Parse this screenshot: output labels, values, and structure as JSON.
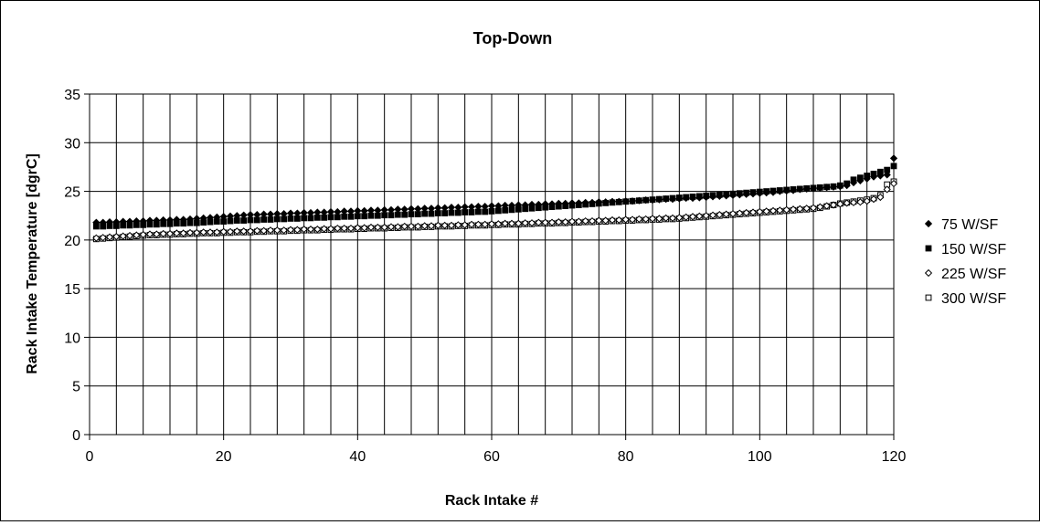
{
  "chart_data": {
    "type": "scatter",
    "title": "Top-Down",
    "xlabel": "Rack Intake #",
    "ylabel": "Rack Intake Temperature [dgrC]",
    "xlim": [
      0,
      120
    ],
    "ylim": [
      0,
      35
    ],
    "xticks": [
      0,
      20,
      40,
      60,
      80,
      100,
      120
    ],
    "yticks": [
      0,
      5,
      10,
      15,
      20,
      25,
      30,
      35
    ],
    "grid": true,
    "legend_position": "right",
    "x": [
      1,
      2,
      3,
      4,
      5,
      6,
      7,
      8,
      9,
      10,
      11,
      12,
      13,
      14,
      15,
      16,
      17,
      18,
      19,
      20,
      21,
      22,
      23,
      24,
      25,
      26,
      27,
      28,
      29,
      30,
      31,
      32,
      33,
      34,
      35,
      36,
      37,
      38,
      39,
      40,
      41,
      42,
      43,
      44,
      45,
      46,
      47,
      48,
      49,
      50,
      51,
      52,
      53,
      54,
      55,
      56,
      57,
      58,
      59,
      60,
      61,
      62,
      63,
      64,
      65,
      66,
      67,
      68,
      69,
      70,
      71,
      72,
      73,
      74,
      75,
      76,
      77,
      78,
      79,
      80,
      81,
      82,
      83,
      84,
      85,
      86,
      87,
      88,
      89,
      90,
      91,
      92,
      93,
      94,
      95,
      96,
      97,
      98,
      99,
      100,
      101,
      102,
      103,
      104,
      105,
      106,
      107,
      108,
      109,
      110,
      111,
      112,
      113,
      114,
      115,
      116,
      117,
      118,
      119,
      120
    ],
    "series": [
      {
        "name": "75 W/SF",
        "marker": "diamond-filled",
        "values": [
          21.8,
          21.8,
          21.85,
          21.85,
          21.9,
          21.9,
          21.95,
          21.95,
          22.0,
          22.0,
          22.05,
          22.05,
          22.1,
          22.1,
          22.15,
          22.2,
          22.25,
          22.3,
          22.35,
          22.4,
          22.45,
          22.5,
          22.55,
          22.6,
          22.6,
          22.65,
          22.65,
          22.7,
          22.7,
          22.75,
          22.75,
          22.8,
          22.8,
          22.85,
          22.85,
          22.9,
          22.9,
          22.95,
          22.95,
          23.0,
          23.0,
          23.05,
          23.05,
          23.1,
          23.1,
          23.15,
          23.15,
          23.2,
          23.2,
          23.25,
          23.25,
          23.3,
          23.3,
          23.35,
          23.35,
          23.4,
          23.4,
          23.45,
          23.45,
          23.5,
          23.5,
          23.55,
          23.55,
          23.6,
          23.6,
          23.65,
          23.65,
          23.7,
          23.7,
          23.75,
          23.75,
          23.8,
          23.8,
          23.85,
          23.85,
          23.9,
          23.9,
          23.95,
          23.95,
          24.0,
          24.0,
          24.05,
          24.1,
          24.1,
          24.15,
          24.2,
          24.2,
          24.25,
          24.3,
          24.3,
          24.35,
          24.4,
          24.45,
          24.5,
          24.55,
          24.6,
          24.65,
          24.7,
          24.75,
          24.8,
          24.85,
          24.9,
          25.0,
          25.05,
          25.1,
          25.2,
          25.25,
          25.3,
          25.35,
          25.4,
          25.45,
          25.5,
          25.6,
          25.9,
          26.1,
          26.3,
          26.5,
          26.6,
          26.7,
          28.4
        ]
      },
      {
        "name": "150 W/SF",
        "marker": "square-filled",
        "values": [
          21.4,
          21.4,
          21.45,
          21.45,
          21.5,
          21.5,
          21.55,
          21.55,
          21.6,
          21.6,
          21.65,
          21.65,
          21.7,
          21.7,
          21.75,
          21.75,
          21.8,
          21.85,
          21.9,
          21.9,
          21.95,
          22.0,
          22.0,
          22.05,
          22.05,
          22.1,
          22.1,
          22.15,
          22.15,
          22.2,
          22.2,
          22.25,
          22.25,
          22.3,
          22.3,
          22.35,
          22.35,
          22.4,
          22.4,
          22.45,
          22.45,
          22.5,
          22.5,
          22.55,
          22.55,
          22.6,
          22.6,
          22.65,
          22.65,
          22.7,
          22.7,
          22.75,
          22.75,
          22.8,
          22.8,
          22.85,
          22.85,
          22.9,
          22.9,
          22.95,
          23.0,
          23.05,
          23.1,
          23.15,
          23.2,
          23.25,
          23.3,
          23.35,
          23.4,
          23.45,
          23.5,
          23.55,
          23.6,
          23.65,
          23.7,
          23.75,
          23.8,
          23.85,
          23.9,
          23.95,
          24.0,
          24.05,
          24.1,
          24.15,
          24.2,
          24.25,
          24.3,
          24.35,
          24.4,
          24.45,
          24.5,
          24.55,
          24.6,
          24.65,
          24.7,
          24.75,
          24.8,
          24.85,
          24.9,
          24.95,
          25.0,
          25.05,
          25.1,
          25.15,
          25.2,
          25.25,
          25.3,
          25.35,
          25.4,
          25.45,
          25.5,
          25.6,
          25.8,
          26.2,
          26.4,
          26.6,
          26.8,
          27.0,
          27.2,
          27.6
        ]
      },
      {
        "name": "225 W/SF",
        "marker": "diamond-open",
        "values": [
          20.2,
          20.25,
          20.3,
          20.35,
          20.4,
          20.45,
          20.5,
          20.55,
          20.6,
          20.6,
          20.65,
          20.65,
          20.7,
          20.7,
          20.75,
          20.75,
          20.8,
          20.8,
          20.8,
          20.85,
          20.85,
          20.9,
          20.9,
          20.9,
          20.95,
          20.95,
          21.0,
          21.0,
          21.0,
          21.05,
          21.05,
          21.1,
          21.1,
          21.1,
          21.15,
          21.15,
          21.2,
          21.2,
          21.2,
          21.25,
          21.25,
          21.3,
          21.3,
          21.3,
          21.35,
          21.35,
          21.4,
          21.4,
          21.4,
          21.45,
          21.45,
          21.5,
          21.5,
          21.5,
          21.55,
          21.55,
          21.6,
          21.6,
          21.6,
          21.65,
          21.65,
          21.7,
          21.7,
          21.7,
          21.75,
          21.75,
          21.8,
          21.8,
          21.8,
          21.85,
          21.85,
          21.9,
          21.9,
          21.95,
          21.95,
          22.0,
          22.0,
          22.05,
          22.05,
          22.1,
          22.1,
          22.15,
          22.15,
          22.2,
          22.2,
          22.25,
          22.25,
          22.3,
          22.35,
          22.4,
          22.45,
          22.5,
          22.55,
          22.6,
          22.65,
          22.7,
          22.75,
          22.8,
          22.85,
          22.9,
          22.95,
          23.0,
          23.05,
          23.1,
          23.15,
          23.2,
          23.25,
          23.3,
          23.4,
          23.5,
          23.6,
          23.7,
          23.8,
          23.85,
          23.9,
          24.0,
          24.2,
          24.4,
          25.2,
          25.8
        ]
      },
      {
        "name": "300 W/SF",
        "marker": "square-open",
        "values": [
          20.1,
          20.15,
          20.2,
          20.25,
          20.3,
          20.35,
          20.4,
          20.45,
          20.5,
          20.5,
          20.55,
          20.55,
          20.6,
          20.6,
          20.65,
          20.65,
          20.7,
          20.7,
          20.7,
          20.75,
          20.75,
          20.8,
          20.8,
          20.8,
          20.85,
          20.85,
          20.9,
          20.9,
          20.9,
          20.95,
          20.95,
          21.0,
          21.0,
          21.0,
          21.05,
          21.05,
          21.1,
          21.1,
          21.1,
          21.15,
          21.15,
          21.2,
          21.2,
          21.2,
          21.25,
          21.25,
          21.3,
          21.3,
          21.3,
          21.35,
          21.35,
          21.4,
          21.4,
          21.4,
          21.45,
          21.45,
          21.5,
          21.5,
          21.5,
          21.55,
          21.55,
          21.6,
          21.6,
          21.6,
          21.65,
          21.65,
          21.7,
          21.7,
          21.7,
          21.75,
          21.75,
          21.8,
          21.8,
          21.85,
          21.85,
          21.9,
          21.9,
          21.95,
          21.95,
          22.0,
          22.0,
          22.05,
          22.05,
          22.1,
          22.1,
          22.15,
          22.15,
          22.2,
          22.25,
          22.3,
          22.35,
          22.4,
          22.45,
          22.5,
          22.55,
          22.6,
          22.65,
          22.7,
          22.75,
          22.8,
          22.85,
          22.9,
          22.95,
          23.0,
          23.05,
          23.1,
          23.15,
          23.2,
          23.3,
          23.45,
          23.6,
          23.75,
          23.85,
          23.95,
          24.05,
          24.15,
          24.3,
          24.6,
          25.7,
          26.0
        ]
      }
    ]
  }
}
